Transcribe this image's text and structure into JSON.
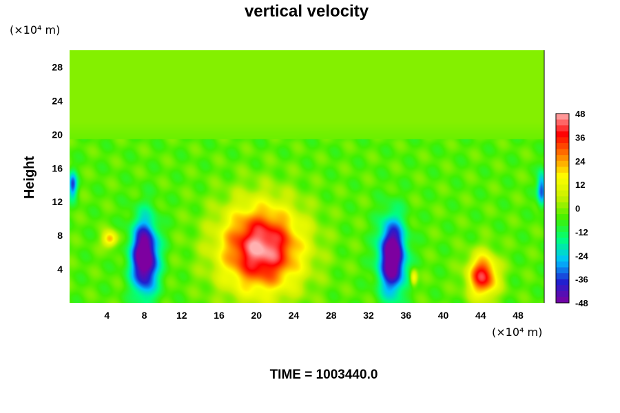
{
  "chart_data": {
    "type": "heatmap",
    "title": "vertical velocity",
    "ylabel": "Height",
    "xlabel": "",
    "x_unit": "(×10⁴ m)",
    "y_unit": "(×10⁴ m)",
    "footer": "TIME = 1003440.0",
    "xlim": [
      0,
      50.8
    ],
    "ylim": [
      0,
      30
    ],
    "x_ticks": [
      4,
      8,
      12,
      16,
      20,
      24,
      28,
      32,
      36,
      40,
      44,
      48
    ],
    "y_ticks": [
      4,
      8,
      12,
      16,
      20,
      24,
      28
    ],
    "colorbar": {
      "min": -48,
      "max": 48,
      "ticks": [
        48,
        36,
        24,
        12,
        0,
        -12,
        -24,
        -36,
        -48
      ]
    },
    "features": [
      {
        "kind": "updraft",
        "x": 20.5,
        "y": 6.5,
        "rx": 5.5,
        "ry": 6.5,
        "peak": 52
      },
      {
        "kind": "updraft",
        "x": 44.2,
        "y": 3.2,
        "rx": 2.0,
        "ry": 3.2,
        "peak": 44
      },
      {
        "kind": "updraft",
        "x": 4.3,
        "y": 7.6,
        "rx": 1.0,
        "ry": 1.2,
        "peak": 28
      },
      {
        "kind": "updraft",
        "x": 36.8,
        "y": 3.0,
        "rx": 0.5,
        "ry": 1.2,
        "peak": 24
      },
      {
        "kind": "downdraft",
        "x": 8.0,
        "y": 5.5,
        "rx": 1.8,
        "ry": 5.5,
        "peak": -55
      },
      {
        "kind": "downdraft",
        "x": 34.5,
        "y": 5.5,
        "rx": 1.8,
        "ry": 5.5,
        "peak": -55
      },
      {
        "kind": "downdraft",
        "x": 0.3,
        "y": 14.0,
        "rx": 0.6,
        "ry": 2.0,
        "peak": -30
      },
      {
        "kind": "downdraft",
        "x": 50.5,
        "y": 13.5,
        "rx": 0.6,
        "ry": 2.5,
        "peak": -32
      }
    ]
  },
  "colors": {
    "ramp": [
      "#7d00a0",
      "#2020d0",
      "#00c0ff",
      "#00ff80",
      "#40f000",
      "#c8f000",
      "#ffff00",
      "#ff8000",
      "#ff0000",
      "#ffb0b0"
    ]
  }
}
